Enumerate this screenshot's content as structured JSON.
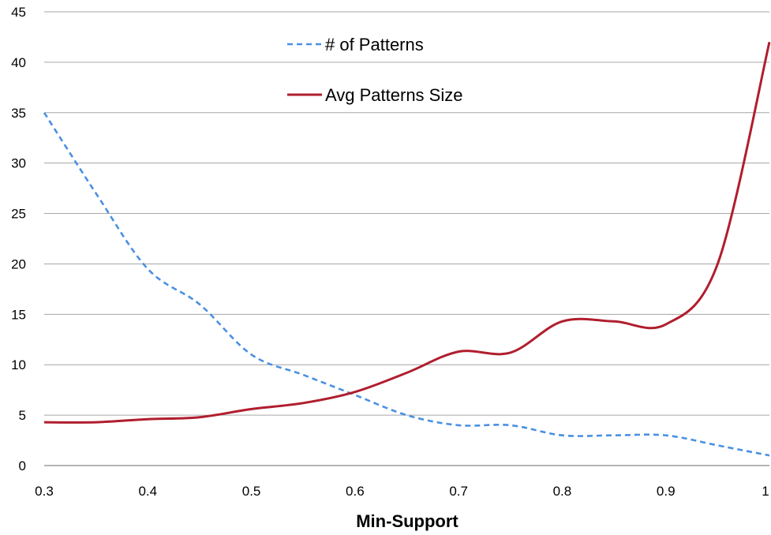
{
  "chart_data": {
    "type": "line",
    "title": "",
    "xlabel": "Min-Support",
    "ylabel": "",
    "xlim": [
      0.3,
      1
    ],
    "ylim": [
      0,
      45
    ],
    "grid": "horizontal",
    "legend": "top-center",
    "x_ticks": [
      "0.3",
      "0.4",
      "0.5",
      "0.6",
      "0.7",
      "0.8",
      "0.9",
      "1"
    ],
    "y_ticks": [
      "0",
      "5",
      "10",
      "15",
      "20",
      "25",
      "30",
      "35",
      "40",
      "45"
    ],
    "series": [
      {
        "name": "# of Patterns",
        "color": "#4a90e2",
        "style": "dashed",
        "x": [
          0.3,
          0.35,
          0.4,
          0.45,
          0.5,
          0.55,
          0.6,
          0.65,
          0.7,
          0.75,
          0.8,
          0.85,
          0.9,
          0.95,
          1.0
        ],
        "y": [
          35,
          27,
          19.5,
          16,
          11,
          9,
          7,
          5,
          4,
          4,
          3,
          3,
          3,
          2,
          1
        ]
      },
      {
        "name": "Avg Patterns Size",
        "color": "#b01e2e",
        "style": "solid",
        "x": [
          0.3,
          0.35,
          0.4,
          0.45,
          0.5,
          0.55,
          0.6,
          0.65,
          0.7,
          0.75,
          0.8,
          0.85,
          0.9,
          0.95,
          1.0
        ],
        "y": [
          4.3,
          4.3,
          4.6,
          4.8,
          5.6,
          6.2,
          7.3,
          9.2,
          11.3,
          11.2,
          14.3,
          14.3,
          14,
          20,
          42
        ]
      }
    ]
  }
}
